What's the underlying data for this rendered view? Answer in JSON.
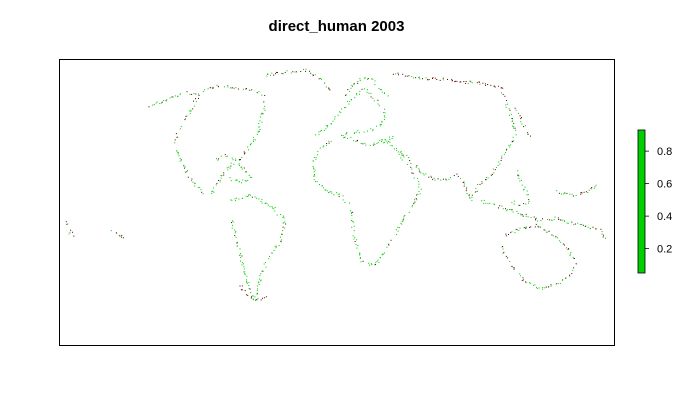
{
  "title": "direct_human 2003",
  "legend": {
    "ticks": [
      "0.2",
      "0.4",
      "0.6",
      "0.8"
    ],
    "tick_values": [
      0.2,
      0.4,
      0.6,
      0.8
    ],
    "range": [
      0.05,
      0.93
    ],
    "bar_color": "#00d000"
  },
  "colors": {
    "high": "#00cc00",
    "low": "#5a0000",
    "frame": "#000000"
  }
}
